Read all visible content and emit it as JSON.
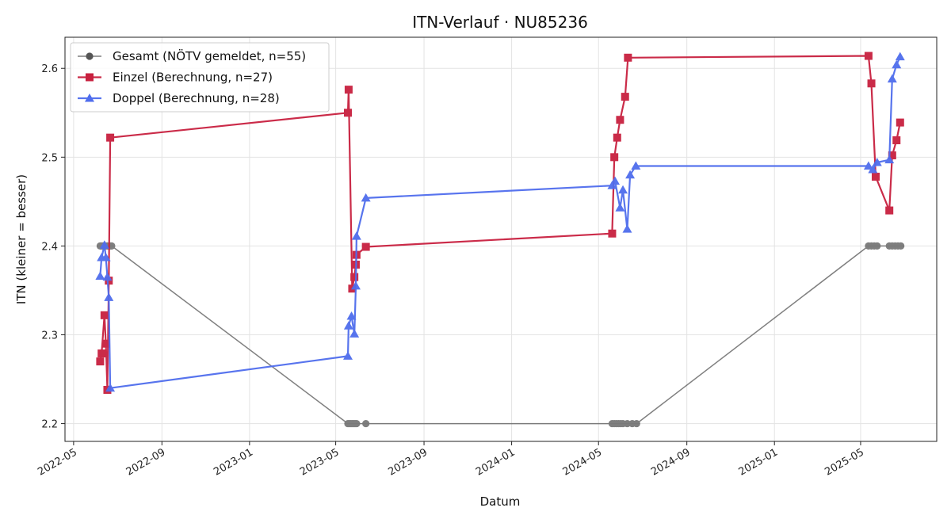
{
  "chart_data": {
    "type": "line",
    "title": "ITN-Verlauf · NU85236",
    "xlabel": "Datum",
    "ylabel": "ITN  (kleiner = besser)",
    "x_axis_type": "date",
    "xlim": [
      "2022-04-19",
      "2025-08-15"
    ],
    "ylim": [
      2.18,
      2.635
    ],
    "x_ticks": [
      "2022-05-01",
      "2022-09-01",
      "2023-01-01",
      "2023-05-01",
      "2023-09-01",
      "2024-01-01",
      "2024-05-01",
      "2024-09-01",
      "2025-01-01",
      "2025-05-01"
    ],
    "x_tick_labels": [
      "2022-05",
      "2022-09",
      "2023-01",
      "2023-05",
      "2023-09",
      "2024-01",
      "2024-05",
      "2024-09",
      "2025-01",
      "2025-05"
    ],
    "y_ticks": [
      2.2,
      2.3,
      2.4,
      2.5,
      2.6
    ],
    "y_tick_labels": [
      "2.2",
      "2.3",
      "2.4",
      "2.5",
      "2.6"
    ],
    "grid": true,
    "legend_position": "top-left",
    "series": [
      {
        "name": "Gesamt (NÖTV gemeldet, n=55)",
        "color": "#555555",
        "marker": "circle",
        "line_width": 1.5,
        "x": [
          "2022-06-07",
          "2022-06-09",
          "2022-06-11",
          "2022-06-13",
          "2022-06-15",
          "2022-06-17",
          "2022-06-19",
          "2022-06-21",
          "2022-06-23",
          "2023-05-18",
          "2023-05-20",
          "2023-05-22",
          "2023-05-24",
          "2023-05-26",
          "2023-05-28",
          "2023-05-30",
          "2023-06-12",
          "2024-05-20",
          "2024-05-23",
          "2024-05-26",
          "2024-05-29",
          "2024-06-01",
          "2024-06-04",
          "2024-06-10",
          "2024-06-17",
          "2024-06-23",
          "2025-05-12",
          "2025-05-16",
          "2025-05-20",
          "2025-05-24",
          "2025-06-10",
          "2025-06-14",
          "2025-06-18",
          "2025-06-22",
          "2025-06-26"
        ],
        "y": [
          2.4,
          2.4,
          2.4,
          2.4,
          2.4,
          2.4,
          2.4,
          2.4,
          2.4,
          2.2,
          2.2,
          2.2,
          2.2,
          2.2,
          2.2,
          2.2,
          2.2,
          2.2,
          2.2,
          2.2,
          2.2,
          2.2,
          2.2,
          2.2,
          2.2,
          2.2,
          2.4,
          2.4,
          2.4,
          2.4,
          2.4,
          2.4,
          2.4,
          2.4,
          2.4
        ]
      },
      {
        "name": "Einzel (Berechnung, n=27)",
        "color": "#c8203f",
        "marker": "square",
        "line_width": 2.2,
        "x": [
          "2022-06-07",
          "2022-06-09",
          "2022-06-13",
          "2022-06-15",
          "2022-06-17",
          "2022-06-19",
          "2022-06-21",
          "2023-05-18",
          "2023-05-19",
          "2023-05-24",
          "2023-05-27",
          "2023-05-29",
          "2023-05-30",
          "2023-06-12",
          "2024-05-20",
          "2024-05-23",
          "2024-05-27",
          "2024-05-31",
          "2024-06-07",
          "2024-06-11",
          "2025-05-12",
          "2025-05-16",
          "2025-05-22",
          "2025-06-10",
          "2025-06-14",
          "2025-06-20",
          "2025-06-25"
        ],
        "y": [
          2.27,
          2.279,
          2.322,
          2.29,
          2.238,
          2.361,
          2.522,
          2.55,
          2.576,
          2.352,
          2.365,
          2.379,
          2.39,
          2.399,
          2.414,
          2.5,
          2.522,
          2.542,
          2.568,
          2.612,
          2.614,
          2.583,
          2.478,
          2.44,
          2.502,
          2.519,
          2.539
        ]
      },
      {
        "name": "Doppel (Berechnung, n=28)",
        "color": "#4f6ded",
        "marker": "triangle",
        "line_width": 2.2,
        "x": [
          "2022-06-07",
          "2022-06-09",
          "2022-06-13",
          "2022-06-15",
          "2022-06-17",
          "2022-06-19",
          "2022-06-21",
          "2023-05-18",
          "2023-05-19",
          "2023-05-23",
          "2023-05-27",
          "2023-05-29",
          "2023-05-30",
          "2023-06-12",
          "2024-05-20",
          "2024-05-24",
          "2024-05-31",
          "2024-06-04",
          "2024-06-10",
          "2024-06-14",
          "2024-06-22",
          "2025-05-12",
          "2025-05-18",
          "2025-05-24",
          "2025-06-10",
          "2025-06-14",
          "2025-06-20",
          "2025-06-25"
        ],
        "y": [
          2.366,
          2.387,
          2.401,
          2.387,
          2.365,
          2.342,
          2.24,
          2.276,
          2.31,
          2.321,
          2.301,
          2.355,
          2.411,
          2.454,
          2.468,
          2.473,
          2.443,
          2.463,
          2.419,
          2.48,
          2.49,
          2.49,
          2.486,
          2.494,
          2.497,
          2.588,
          2.604,
          2.613
        ]
      }
    ]
  }
}
